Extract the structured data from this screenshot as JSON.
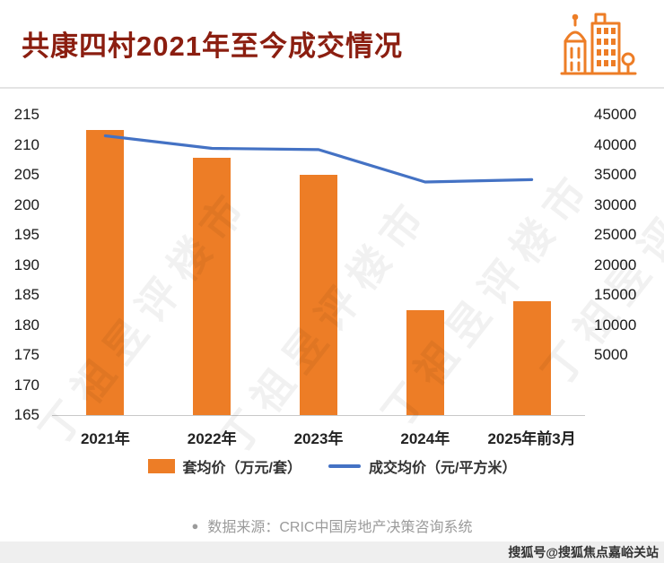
{
  "header": {
    "title": "共康四村2021年至今成交情况",
    "icon": "city-buildings-icon"
  },
  "chart_data": {
    "type": "combo",
    "categories": [
      "2021年",
      "2022年",
      "2023年",
      "2024年",
      "2025年前3月"
    ],
    "series": [
      {
        "name": "套均价（万元/套）",
        "type": "bar",
        "axis": "left",
        "color": "#ED7D26",
        "values": [
          212.5,
          207.8,
          205,
          182.5,
          184
        ]
      },
      {
        "name": "成交均价（元/平方米）",
        "type": "line",
        "axis": "right",
        "color": "#4472C4",
        "values": [
          41500,
          39400,
          39200,
          33800,
          34200
        ]
      }
    ],
    "left_axis": {
      "min": 165,
      "max": 215,
      "step": 5,
      "ticks": [
        215,
        210,
        205,
        200,
        195,
        190,
        185,
        180,
        175,
        170,
        165
      ]
    },
    "right_axis": {
      "top": 45000,
      "step": 5000,
      "ticks": [
        45000,
        40000,
        35000,
        30000,
        25000,
        20000,
        15000,
        10000,
        5000
      ]
    },
    "grid": false,
    "legend_position": "bottom",
    "title": "共康四村2021年至今成交情况",
    "xlabel": "",
    "ylabel_left": "套均价（万元/套）",
    "ylabel_right": "成交均价（元/平方米）"
  },
  "legend": {
    "items": [
      {
        "label": "套均价（万元/套）",
        "swatch": "bar",
        "color": "#ED7D26"
      },
      {
        "label": "成交均价（元/平方米）",
        "swatch": "line",
        "color": "#4472C4"
      }
    ]
  },
  "source": {
    "bullet": "●",
    "text": "数据来源：CRIC中国房地产决策咨询系统"
  },
  "watermarks": {
    "diagonal": "丁祖昱评楼市",
    "footer": "搜狐号@搜狐焦点嘉峪关站"
  },
  "colors": {
    "title": "#8B1E10",
    "bar": "#ED7D26",
    "line": "#4472C4",
    "axis_text": "#1A1A1A",
    "source_text": "#9B9B9B"
  }
}
